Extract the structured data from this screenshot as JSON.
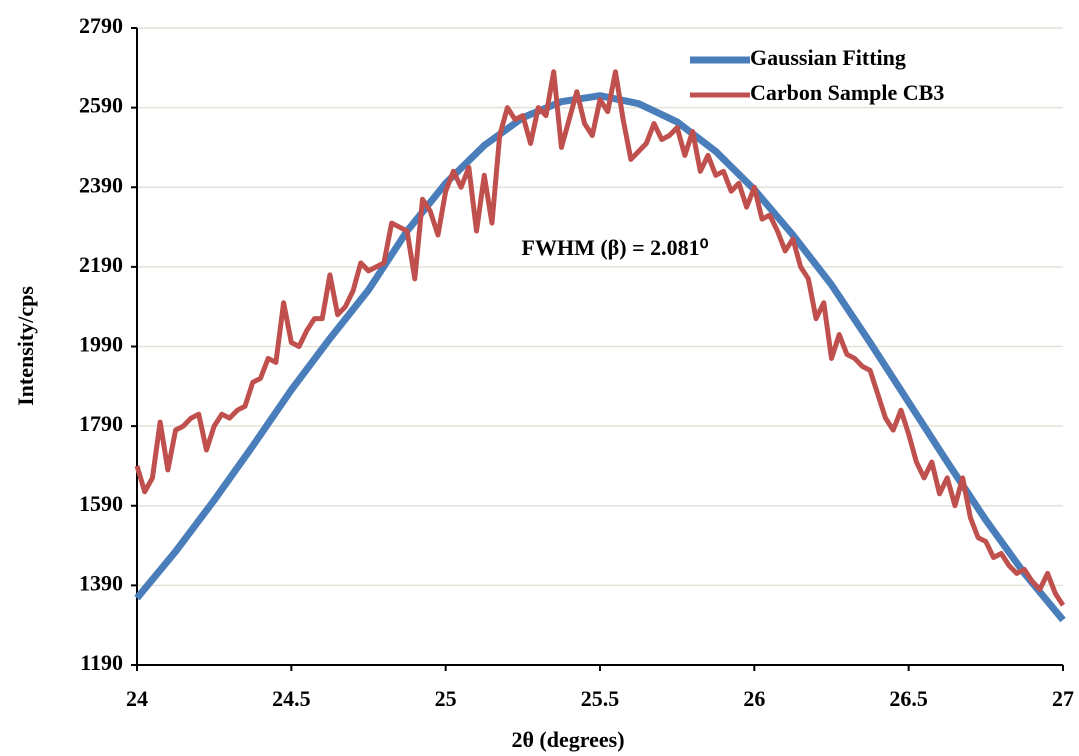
{
  "chart_data": {
    "type": "line",
    "xlabel": "2θ (degrees)",
    "ylabel": "Intensity/cps",
    "annotation": "FWHM (β) = 2.081⁰",
    "xlim": [
      24,
      27
    ],
    "xticks": [
      24,
      24.5,
      25,
      25.5,
      26,
      26.5,
      27
    ],
    "ylim": [
      1190,
      2790
    ],
    "yticks": [
      1190,
      1390,
      1590,
      1790,
      1990,
      2190,
      2390,
      2590,
      2790
    ],
    "grid": true,
    "legend": "top-right",
    "series": [
      {
        "name": "Gaussian Fitting",
        "color": "#4a7ebb",
        "x": [
          24,
          24.125,
          24.25,
          24.375,
          24.5,
          24.625,
          24.75,
          24.875,
          25,
          25.125,
          25.25,
          25.375,
          25.5,
          25.625,
          25.75,
          25.875,
          26,
          26.125,
          26.25,
          26.375,
          26.5,
          26.625,
          26.75,
          26.875,
          27
        ],
        "values": [
          1358,
          1475,
          1604,
          1740,
          1881,
          2010,
          2132,
          2280,
          2400,
          2495,
          2565,
          2605,
          2620,
          2600,
          2554,
          2480,
          2384,
          2270,
          2145,
          2000,
          1850,
          1700,
          1554,
          1420,
          1303
        ]
      },
      {
        "name": "Carbon Sample CB3",
        "color": "#c0504d",
        "x": [
          24,
          24.025,
          24.05,
          24.075,
          24.1,
          24.125,
          24.15,
          24.175,
          24.2,
          24.225,
          24.25,
          24.275,
          24.3,
          24.325,
          24.35,
          24.375,
          24.4,
          24.425,
          24.45,
          24.475,
          24.5,
          24.525,
          24.55,
          24.575,
          24.6,
          24.625,
          24.65,
          24.675,
          24.7,
          24.725,
          24.75,
          24.775,
          24.8,
          24.825,
          24.85,
          24.875,
          24.9,
          24.925,
          24.95,
          24.975,
          25,
          25.025,
          25.05,
          25.075,
          25.1,
          25.125,
          25.15,
          25.175,
          25.2,
          25.225,
          25.25,
          25.275,
          25.3,
          25.325,
          25.35,
          25.375,
          25.4,
          25.425,
          25.45,
          25.475,
          25.5,
          25.525,
          25.55,
          25.575,
          25.6,
          25.625,
          25.65,
          25.675,
          25.7,
          25.725,
          25.75,
          25.775,
          25.8,
          25.825,
          25.85,
          25.875,
          25.9,
          25.925,
          25.95,
          25.975,
          26,
          26.025,
          26.05,
          26.075,
          26.1,
          26.125,
          26.15,
          26.175,
          26.2,
          26.225,
          26.25,
          26.275,
          26.3,
          26.325,
          26.35,
          26.375,
          26.4,
          26.425,
          26.45,
          26.475,
          26.5,
          26.525,
          26.55,
          26.575,
          26.6,
          26.625,
          26.65,
          26.675,
          26.7,
          26.725,
          26.75,
          26.775,
          26.8,
          26.825,
          26.85,
          26.875,
          26.9,
          26.925,
          26.95,
          26.975,
          27
        ],
        "values": [
          1690,
          1625,
          1660,
          1800,
          1680,
          1780,
          1790,
          1810,
          1820,
          1730,
          1790,
          1820,
          1810,
          1830,
          1840,
          1900,
          1910,
          1960,
          1950,
          2100,
          2000,
          1990,
          2030,
          2060,
          2060,
          2170,
          2070,
          2090,
          2130,
          2200,
          2180,
          2190,
          2200,
          2300,
          2290,
          2280,
          2160,
          2360,
          2330,
          2270,
          2380,
          2430,
          2390,
          2440,
          2280,
          2420,
          2300,
          2520,
          2590,
          2560,
          2570,
          2500,
          2590,
          2570,
          2680,
          2490,
          2560,
          2630,
          2550,
          2520,
          2610,
          2580,
          2680,
          2560,
          2460,
          2480,
          2500,
          2550,
          2510,
          2520,
          2540,
          2470,
          2530,
          2430,
          2470,
          2420,
          2430,
          2380,
          2400,
          2340,
          2390,
          2310,
          2320,
          2280,
          2230,
          2260,
          2190,
          2160,
          2060,
          2100,
          1960,
          2020,
          1970,
          1960,
          1940,
          1930,
          1870,
          1810,
          1780,
          1830,
          1770,
          1700,
          1660,
          1700,
          1620,
          1660,
          1590,
          1660,
          1560,
          1510,
          1500,
          1460,
          1470,
          1440,
          1420,
          1430,
          1400,
          1380,
          1420,
          1370,
          1340
        ]
      }
    ]
  }
}
